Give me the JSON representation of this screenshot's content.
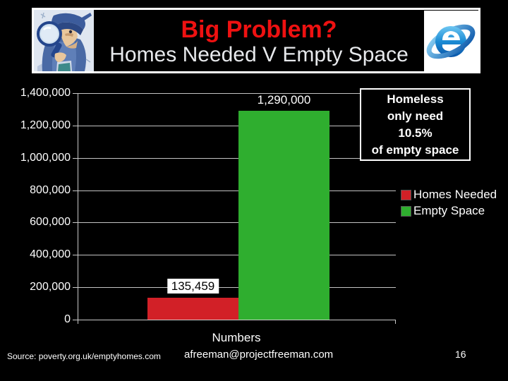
{
  "header": {
    "title": "Big Problem?",
    "subtitle": "Homes Needed V Empty Space",
    "title_color": "#ee1111",
    "subtitle_color": "#e7e9ec"
  },
  "annotation_box": {
    "lines": [
      "Homeless",
      "only need",
      "10.5%",
      "of empty space"
    ]
  },
  "legend": {
    "items": [
      {
        "label": "Homes Needed",
        "color": "#d22027"
      },
      {
        "label": "Empty Space",
        "color": "#2fae2f"
      }
    ]
  },
  "footer": {
    "source": "Source: poverty.org.uk/emptyhomes.com",
    "email": "afreeman@projectfreeman.com",
    "page_number": "16"
  },
  "chart_data": {
    "type": "bar",
    "title": "Homes Needed V Empty Space",
    "categories": [
      "Numbers"
    ],
    "series": [
      {
        "name": "Homes Needed",
        "values": [
          135459
        ],
        "data_label": "135,459",
        "color": "#d22027",
        "label_boxed": true
      },
      {
        "name": "Empty Space",
        "values": [
          1290000
        ],
        "data_label": "1,290,000",
        "color": "#2fae2f",
        "label_boxed": false
      }
    ],
    "xlabel": "Numbers",
    "ylabel": "",
    "ylim": [
      0,
      1400000
    ],
    "ytick_step": 200000,
    "ytick_labels": [
      "0",
      "200,000",
      "400,000",
      "600,000",
      "800,000",
      "1,000,000",
      "1,200,000",
      "1,400,000"
    ],
    "grid": true,
    "legend_position": "right",
    "background": "#000000",
    "annotation": "Homeless only need 10.5% of empty space"
  }
}
